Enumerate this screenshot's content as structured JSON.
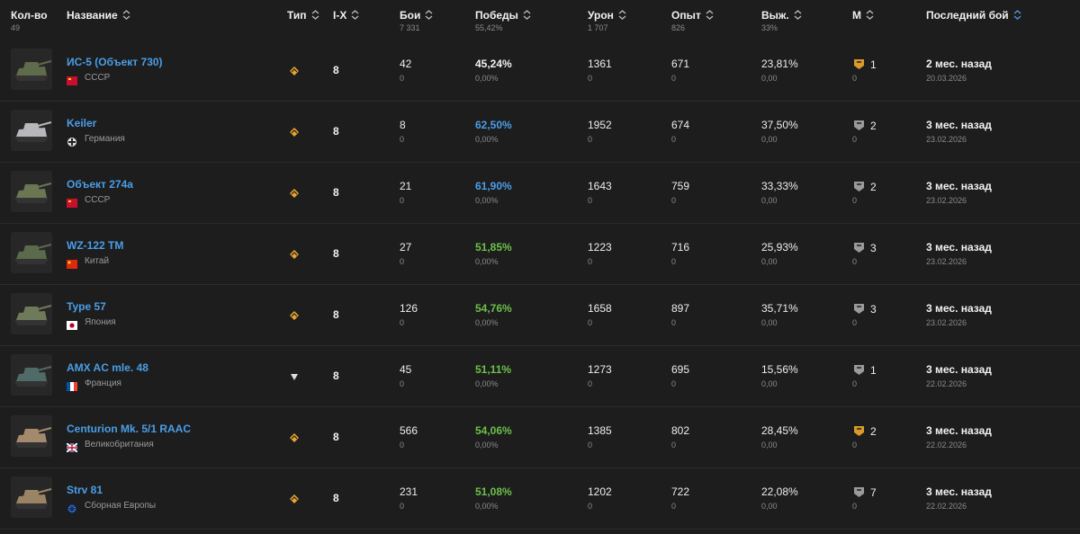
{
  "header": {
    "columns": [
      {
        "label": "Кол-во",
        "sub": "49"
      },
      {
        "label": "Название"
      },
      {
        "label": "Тип"
      },
      {
        "label": "I-X"
      },
      {
        "label": "Бои",
        "sub": "7 331"
      },
      {
        "label": "Победы",
        "sub": "55,42%"
      },
      {
        "label": "Урон",
        "sub": "1 707"
      },
      {
        "label": "Опыт",
        "sub": "826"
      },
      {
        "label": "Выж.",
        "sub": "33%"
      },
      {
        "label": "М"
      },
      {
        "label": "Последний бой"
      }
    ]
  },
  "rows": [
    {
      "name": "ИС-5 (Объект 730)",
      "nation": "СССР",
      "tier": 8,
      "battles": 42,
      "battles_delta": 0,
      "wins": "45,24%",
      "wins_delta": "0,00%",
      "damage": 1361,
      "damage_delta": 0,
      "xp": 671,
      "xp_delta": 0,
      "survival": "23,81%",
      "survival_delta": "0,00",
      "mastery": 1,
      "mastery_delta": 0,
      "last_battle": "2 мес. назад",
      "date": "20.03.2026"
    },
    {
      "name": "Keiler",
      "nation": "Германия",
      "tier": 8,
      "battles": 8,
      "battles_delta": 0,
      "wins": "62,50%",
      "wins_delta": "0,00%",
      "damage": 1952,
      "damage_delta": 0,
      "xp": 674,
      "xp_delta": 0,
      "survival": "37,50%",
      "survival_delta": "0,00",
      "mastery": 2,
      "mastery_delta": 0,
      "last_battle": "3 мес. назад",
      "date": "23.02.2026"
    },
    {
      "name": "Объект 274а",
      "nation": "СССР",
      "tier": 8,
      "battles": 21,
      "battles_delta": 0,
      "wins": "61,90%",
      "wins_delta": "0,00%",
      "damage": 1643,
      "damage_delta": 0,
      "xp": 759,
      "xp_delta": 0,
      "survival": "33,33%",
      "survival_delta": "0,00",
      "mastery": 2,
      "mastery_delta": 0,
      "last_battle": "3 мес. назад",
      "date": "23.02.2026"
    },
    {
      "name": "WZ-122 TM",
      "nation": "Китай",
      "tier": 8,
      "battles": 27,
      "battles_delta": 0,
      "wins": "51,85%",
      "wins_delta": "0,00%",
      "damage": 1223,
      "damage_delta": 0,
      "xp": 716,
      "xp_delta": 0,
      "survival": "25,93%",
      "survival_delta": "0,00",
      "mastery": 3,
      "mastery_delta": 0,
      "last_battle": "3 мес. назад",
      "date": "23.02.2026"
    },
    {
      "name": "Type 57",
      "nation": "Япония",
      "tier": 8,
      "battles": 126,
      "battles_delta": 0,
      "wins": "54,76%",
      "wins_delta": "0,00%",
      "damage": 1658,
      "damage_delta": 0,
      "xp": 897,
      "xp_delta": 0,
      "survival": "35,71%",
      "survival_delta": "0,00",
      "mastery": 3,
      "mastery_delta": 0,
      "last_battle": "3 мес. назад",
      "date": "23.02.2026"
    },
    {
      "name": "AMX AC mle. 48",
      "nation": "Франция",
      "tier": 8,
      "battles": 45,
      "battles_delta": 0,
      "wins": "51,11%",
      "wins_delta": "0,00%",
      "damage": 1273,
      "damage_delta": 0,
      "xp": 695,
      "xp_delta": 0,
      "survival": "15,56%",
      "survival_delta": "0,00",
      "mastery": 1,
      "mastery_delta": 0,
      "last_battle": "3 мес. назад",
      "date": "22.02.2026"
    },
    {
      "name": "Centurion Mk. 5/1 RAAC",
      "nation": "Великобритания",
      "tier": 8,
      "battles": 566,
      "battles_delta": 0,
      "wins": "54,06%",
      "wins_delta": "0,00%",
      "damage": 1385,
      "damage_delta": 0,
      "xp": 802,
      "xp_delta": 0,
      "survival": "28,45%",
      "survival_delta": "0,00",
      "mastery": 2,
      "mastery_delta": 0,
      "last_battle": "3 мес. назад",
      "date": "22.02.2026"
    },
    {
      "name": "Strv 81",
      "nation": "Сборная Европы",
      "tier": 8,
      "battles": 231,
      "battles_delta": 0,
      "wins": "51,08%",
      "wins_delta": "0,00%",
      "damage": 1202,
      "damage_delta": 0,
      "xp": 722,
      "xp_delta": 0,
      "survival": "22,08%",
      "survival_delta": "0,00",
      "mastery": 7,
      "mastery_delta": 0,
      "last_battle": "3 мес. назад",
      "date": "22.02.2026"
    }
  ]
}
